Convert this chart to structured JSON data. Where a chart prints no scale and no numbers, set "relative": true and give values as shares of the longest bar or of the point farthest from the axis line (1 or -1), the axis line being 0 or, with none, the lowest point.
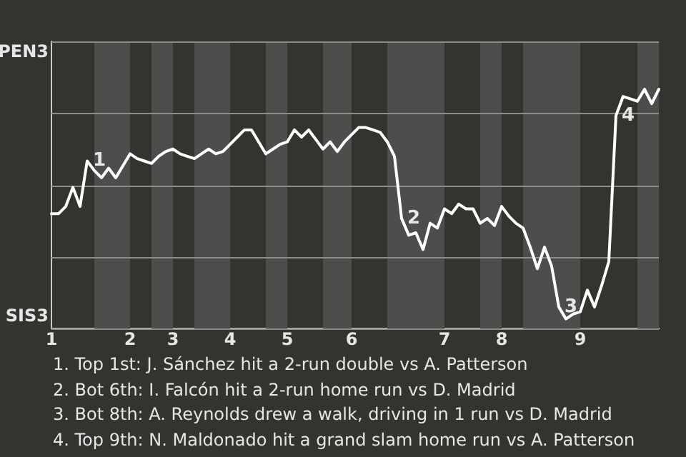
{
  "chart_data": {
    "type": "line",
    "categories": [
      "1",
      null,
      null,
      null,
      null,
      null,
      null,
      null,
      null,
      null,
      null,
      "2",
      null,
      null,
      null,
      null,
      null,
      "3",
      null,
      null,
      null,
      null,
      null,
      null,
      null,
      "4",
      null,
      null,
      null,
      null,
      null,
      null,
      null,
      "5",
      null,
      null,
      null,
      null,
      null,
      null,
      null,
      null,
      "6",
      null,
      null,
      null,
      null,
      null,
      null,
      null,
      null,
      null,
      null,
      null,
      null,
      "7",
      null,
      null,
      null,
      null,
      null,
      null,
      null,
      "8",
      null,
      null,
      null,
      null,
      null,
      null,
      null,
      null,
      null,
      null,
      "9",
      null,
      null,
      null,
      null,
      null,
      null,
      null,
      null,
      null,
      null,
      null
    ],
    "series": [
      {
        "color": "#ffffff",
        "values": [
          0.48,
          0.48,
          0.51,
          0.59,
          0.51,
          0.7,
          0.66,
          0.63,
          0.67,
          0.63,
          0.68,
          0.73,
          0.71,
          0.7,
          0.69,
          0.72,
          0.74,
          0.75,
          0.73,
          0.72,
          0.71,
          0.73,
          0.75,
          0.73,
          0.74,
          0.77,
          0.8,
          0.83,
          0.83,
          0.78,
          0.73,
          0.75,
          0.77,
          0.78,
          0.83,
          0.8,
          0.83,
          0.79,
          0.75,
          0.78,
          0.74,
          0.78,
          0.81,
          0.84,
          0.84,
          0.83,
          0.82,
          0.78,
          0.72,
          0.46,
          0.39,
          0.4,
          0.33,
          0.44,
          0.42,
          0.5,
          0.48,
          0.52,
          0.5,
          0.5,
          0.44,
          0.46,
          0.43,
          0.51,
          0.47,
          0.44,
          0.42,
          0.34,
          0.25,
          0.34,
          0.26,
          0.09,
          0.04,
          0.06,
          0.07,
          0.16,
          0.09,
          0.18,
          0.28,
          0.89,
          0.97,
          0.96,
          0.95,
          1,
          0.94,
          1
        ]
      }
    ],
    "relative": true,
    "grid": "y",
    "legend": false,
    "marker": "none",
    "line_style": "solid",
    "annotations": [
      "PEN3",
      "SIS3",
      "1",
      "2",
      "3",
      "4",
      "1. Top 1st: J. Sánchez hit a 2-run double vs A. Patterson",
      "2. Bot 6th: I. Falcón hit a 2-run home run vs D. Madrid",
      "3. Bot 8th: A. Reynolds drew a walk, driving in 1 run vs D. Madrid",
      "4. Top 9th: N. Maldonado hit a grand slam home run vs A. Patterson"
    ]
  }
}
